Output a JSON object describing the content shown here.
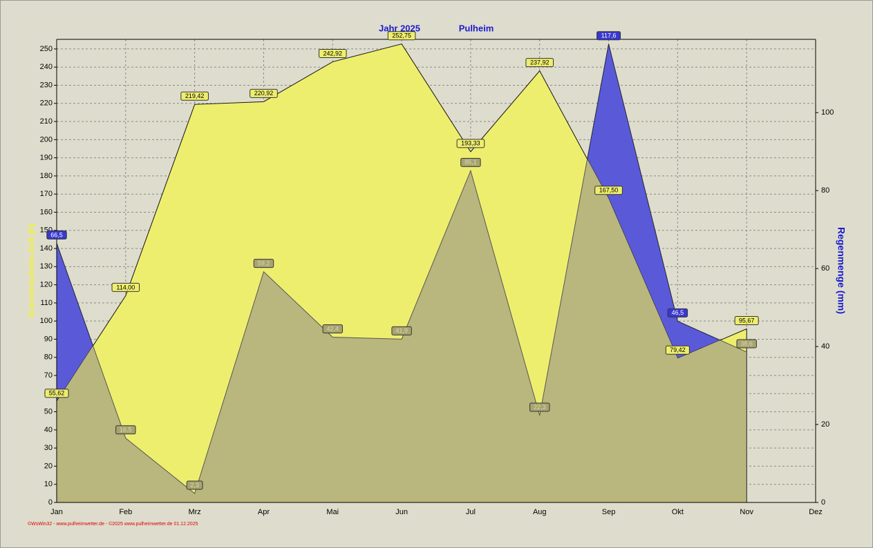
{
  "chart_data": {
    "type": "area",
    "title": "Jahr  2025",
    "subtitle": "Pulheim",
    "y_label": "Sonnenschein-Zeit  (h)",
    "y2_label": "Regenmenge  (mm)",
    "footer": "©WsWin32 - www.pulheimwetter.de - ©2025 www.pulheimwetter.de  01.12.2025",
    "categories": [
      "Jan",
      "Feb",
      "Mrz",
      "Apr",
      "Mai",
      "Jun",
      "Jul",
      "Aug",
      "Sep",
      "Okt",
      "Nov",
      "Dez"
    ],
    "series": [
      {
        "name": "Sonnenschein",
        "color": "#eeee6e",
        "axis": "y",
        "values": [
          55.62,
          114.0,
          219.42,
          220.92,
          242.92,
          252.75,
          193.33,
          237.92,
          167.5,
          79.42,
          95.67,
          null
        ],
        "value_labels": [
          "55,62",
          "114,00",
          "219,42",
          "220,92",
          "242,92",
          "252,75",
          "193,33",
          "237,92",
          "167,50",
          "79,42",
          "95,67",
          null
        ]
      },
      {
        "name": "Regen",
        "color": "#5a5ad8",
        "axis": "y2",
        "values": [
          66.5,
          16.5,
          2.3,
          59.2,
          42.4,
          41.9,
          85.1,
          22.3,
          117.6,
          46.5,
          38.6,
          null
        ],
        "value_labels": [
          "66,5",
          "16,5",
          "2,3",
          "59,2",
          "42,4",
          "41,9",
          "85,1",
          "22,3",
          "117,6",
          "46,5",
          "38,6",
          null
        ]
      }
    ],
    "ylim": [
      0,
      255.3
    ],
    "yticks": [
      0,
      10,
      20,
      30,
      40,
      50,
      60,
      70,
      80,
      90,
      100,
      110,
      120,
      130,
      140,
      150,
      160,
      170,
      180,
      190,
      200,
      210,
      220,
      230,
      240,
      250
    ],
    "y2lim": [
      0,
      118.8
    ],
    "y2ticks": [
      0,
      20,
      40,
      60,
      80,
      100
    ],
    "grid": true
  }
}
